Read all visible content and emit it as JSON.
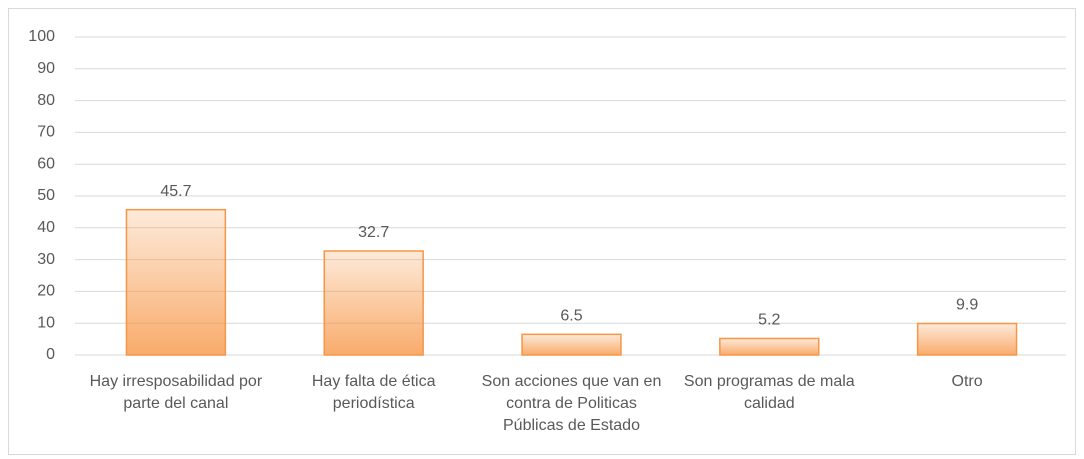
{
  "chart_data": {
    "type": "bar",
    "categories": [
      "Hay irresposabilidad por parte del canal",
      "Hay falta de ética periodística",
      "Son acciones que van en contra de Politicas Públicas de Estado",
      "Son programas de mala calidad",
      "Otro"
    ],
    "values": [
      45.7,
      32.7,
      6.5,
      5.2,
      9.9
    ],
    "color": "#f79646",
    "ylim": [
      0,
      100
    ],
    "yticks": [
      0,
      10,
      20,
      30,
      40,
      50,
      60,
      70,
      80,
      90,
      100
    ],
    "grid": true
  }
}
